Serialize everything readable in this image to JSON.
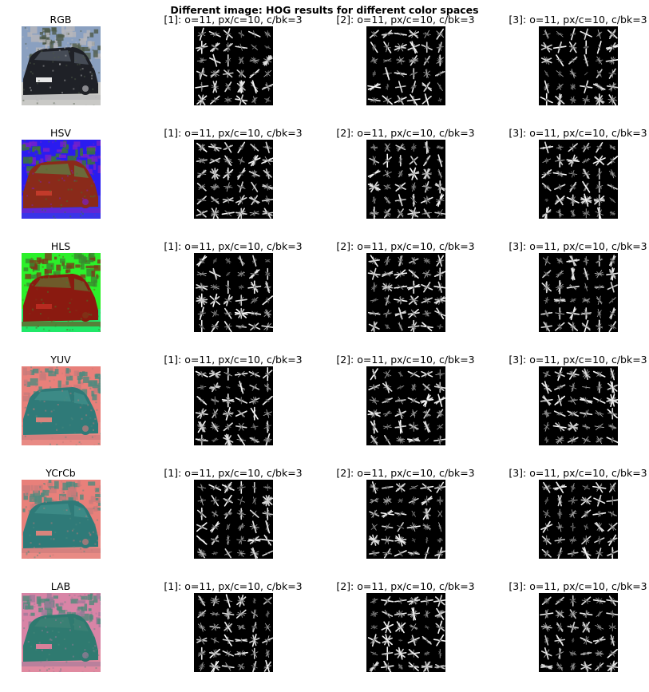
{
  "figure": {
    "title": "Different image: HOG results for different color spaces",
    "rows": [
      {
        "color_space": "RGB",
        "thumb_palette": {
          "sky": "#8aa0c0",
          "trees": "#4d5a48",
          "car": "#1f2127",
          "window": "#454b55",
          "road": "#c9c9c6",
          "plate": "#e8e8e8",
          "accent": "#b7b7ba"
        },
        "hog_titles": [
          "[1]: o=11, px/c=10, c/bk=3",
          "[2]: o=11, px/c=10, c/bk=3",
          "[3]: o=11, px/c=10, c/bk=3"
        ]
      },
      {
        "color_space": "HSV",
        "thumb_palette": {
          "sky": "#2a1cf0",
          "trees": "#3c7a2c",
          "car": "#8a2a1a",
          "window": "#6a6a3a",
          "road": "#3a34e8",
          "plate": "#c23a2a",
          "accent": "#7a20c8"
        },
        "hog_titles": [
          "[1]: o=11, px/c=10, c/bk=3",
          "[2]: o=11, px/c=10, c/bk=3",
          "[3]: o=11, px/c=10, c/bk=3"
        ]
      },
      {
        "color_space": "HLS",
        "thumb_palette": {
          "sky": "#2cf02a",
          "trees": "#3a8a2e",
          "car": "#8a1a10",
          "window": "#6e5a2a",
          "road": "#20e868",
          "plate": "#b82a20",
          "accent": "#7c3a1a"
        },
        "hog_titles": [
          "[1]: o=11, px/c=10, c/bk=3",
          "[2]: o=11, px/c=10, c/bk=3",
          "[3]: o=11, px/c=10, c/bk=3"
        ]
      },
      {
        "color_space": "YUV",
        "thumb_palette": {
          "sky": "#e8807a",
          "trees": "#4f8a7e",
          "car": "#2f7a78",
          "window": "#3c8a86",
          "road": "#e88a84",
          "plate": "#d8847c",
          "accent": "#c87a7a"
        },
        "hog_titles": [
          "[1]: o=11, px/c=10, c/bk=3",
          "[2]: o=11, px/c=10, c/bk=3",
          "[3]: o=11, px/c=10, c/bk=3"
        ]
      },
      {
        "color_space": "YCrCb",
        "thumb_palette": {
          "sky": "#e8807a",
          "trees": "#4f8a7e",
          "car": "#2f7a78",
          "window": "#3c8a86",
          "road": "#e88a84",
          "plate": "#d8847c",
          "accent": "#c87a7a"
        },
        "hog_titles": [
          "[1]: o=11, px/c=10, c/bk=3",
          "[2]: o=11, px/c=10, c/bk=3",
          "[3]: o=11, px/c=10, c/bk=3"
        ]
      },
      {
        "color_space": "LAB",
        "thumb_palette": {
          "sky": "#d884a6",
          "trees": "#4f8a7a",
          "car": "#2f7a70",
          "window": "#3a8074",
          "road": "#e08aa0",
          "plate": "#d8809a",
          "accent": "#a07a9a"
        },
        "hog_titles": [
          "[1]: o=11, px/c=10, c/bk=3",
          "[2]: o=11, px/c=10, c/bk=3",
          "[3]: o=11, px/c=10, c/bk=3"
        ]
      }
    ]
  }
}
